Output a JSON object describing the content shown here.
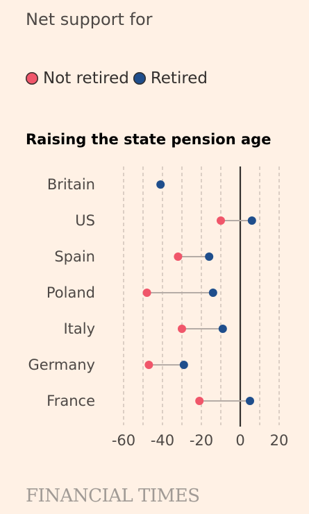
{
  "subtitle": "Net support for",
  "legend": [
    {
      "label": "Not retired",
      "color": "#F0566A"
    },
    {
      "label": "Retired",
      "color": "#1F4E8C"
    }
  ],
  "source": "FINANCIAL TIMES",
  "chart_data": {
    "type": "dot-plot",
    "title": "Raising the state pension age",
    "categories": [
      "Britain",
      "US",
      "Spain",
      "Poland",
      "Italy",
      "Germany",
      "France"
    ],
    "series": [
      {
        "name": "Not retired",
        "color": "#F0566A",
        "values": [
          null,
          -10,
          -32,
          -48,
          -30,
          -47,
          -21
        ]
      },
      {
        "name": "Retired",
        "color": "#1F4E8C",
        "values": [
          -41,
          6,
          -16,
          -14,
          -9,
          -29,
          5
        ]
      }
    ],
    "xlim": [
      -60,
      20
    ],
    "xticks": [
      -60,
      -40,
      -20,
      0,
      20
    ],
    "grid": true,
    "zero_line": true
  }
}
